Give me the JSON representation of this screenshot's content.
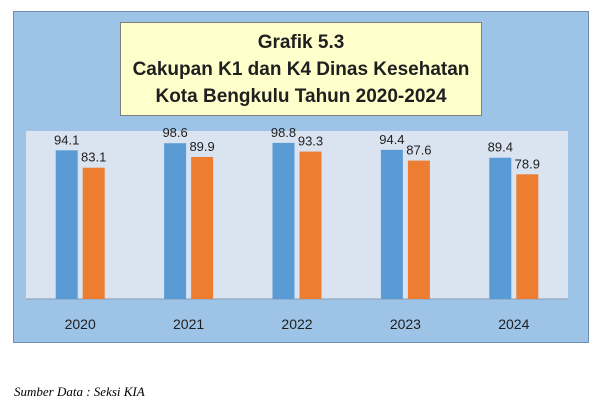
{
  "title": {
    "line1": "Grafik 5.3",
    "line2": "Cakupan K1 dan K4 Dinas Kesehatan",
    "line3": "Kota Bengkulu Tahun 2020-2024"
  },
  "source": "Sumber Data : Seksi KIA",
  "colors": {
    "frame_bg": "#9dc3e6",
    "plot_bg": "#dae3f0",
    "title_bg": "#ffffcc",
    "series_k1": "#5b9bd5",
    "series_k4": "#ed7d31"
  },
  "chart_data": {
    "type": "bar",
    "title": "Cakupan K1 dan K4 Dinas Kesehatan Kota Bengkulu Tahun 2020-2024",
    "categories": [
      "2020",
      "2021",
      "2022",
      "2023",
      "2024"
    ],
    "series": [
      {
        "values": [
          94.1,
          98.6,
          98.8,
          94.4,
          89.4
        ],
        "color": "#5b9bd5"
      },
      {
        "values": [
          83.1,
          89.9,
          93.3,
          87.6,
          78.9
        ],
        "color": "#ed7d31"
      }
    ],
    "value_labels": [
      [
        "94.1",
        "98.6",
        "98.8",
        "94.4",
        "89.4"
      ],
      [
        "83.1",
        "89.9",
        "93.3",
        "87.6",
        "78.9"
      ]
    ],
    "xlabel": "",
    "ylabel": "",
    "ylim": [
      0,
      100
    ],
    "y_axis_visible": false,
    "grid": false,
    "legend": "none"
  }
}
